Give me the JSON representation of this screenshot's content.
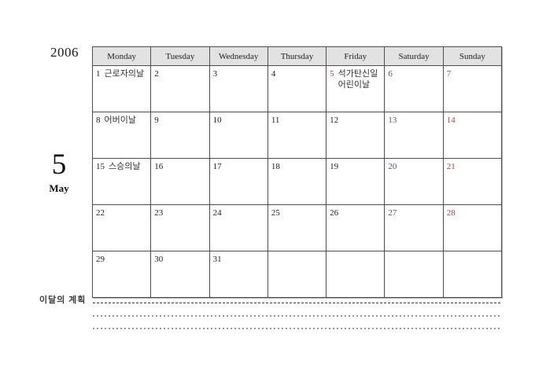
{
  "title": {
    "year": "2006",
    "month_number": "5",
    "month_name": "May"
  },
  "plan": {
    "label": "이달의 계획"
  },
  "calendar": {
    "day_headers": [
      "Monday",
      "Tuesday",
      "Wednesday",
      "Thursday",
      "Friday",
      "Saturday",
      "Sunday"
    ],
    "weeks": [
      [
        {
          "date": "1",
          "holidays": [
            "근로자의날"
          ],
          "color": "black"
        },
        {
          "date": "2",
          "color": "black"
        },
        {
          "date": "3",
          "color": "black"
        },
        {
          "date": "4",
          "color": "black"
        },
        {
          "date": "5",
          "holidays": [
            "석가탄신일",
            "어린이날"
          ],
          "color": "red"
        },
        {
          "date": "6",
          "color": "blue"
        },
        {
          "date": "7",
          "color": "red"
        }
      ],
      [
        {
          "date": "8",
          "holidays": [
            "어버이날"
          ],
          "color": "black"
        },
        {
          "date": "9",
          "color": "black"
        },
        {
          "date": "10",
          "color": "black"
        },
        {
          "date": "11",
          "color": "black"
        },
        {
          "date": "12",
          "color": "black"
        },
        {
          "date": "13",
          "color": "blue"
        },
        {
          "date": "14",
          "color": "red"
        }
      ],
      [
        {
          "date": "15",
          "holidays": [
            "스승의날"
          ],
          "color": "black"
        },
        {
          "date": "16",
          "color": "black"
        },
        {
          "date": "17",
          "color": "black"
        },
        {
          "date": "18",
          "color": "black"
        },
        {
          "date": "19",
          "color": "black"
        },
        {
          "date": "20",
          "color": "blue"
        },
        {
          "date": "21",
          "color": "red"
        }
      ],
      [
        {
          "date": "22",
          "color": "black"
        },
        {
          "date": "23",
          "color": "black"
        },
        {
          "date": "24",
          "color": "black"
        },
        {
          "date": "25",
          "color": "black"
        },
        {
          "date": "26",
          "color": "black"
        },
        {
          "date": "27",
          "color": "blue"
        },
        {
          "date": "28",
          "color": "red"
        }
      ],
      [
        {
          "date": "29",
          "color": "black"
        },
        {
          "date": "30",
          "color": "black"
        },
        {
          "date": "31",
          "color": "black"
        },
        {
          "date": ""
        },
        {
          "date": ""
        },
        {
          "date": ""
        },
        {
          "date": ""
        }
      ]
    ]
  },
  "colors": {
    "red": "#a94444",
    "blue": "#4f4fa8",
    "text": "#1c1c1c",
    "holiday_text": "#333333",
    "header_bg": "#e2e2e2",
    "border": "#4d4d4d",
    "line_dark": "#3a3a3a",
    "line_gray": "#9a9a9a"
  }
}
